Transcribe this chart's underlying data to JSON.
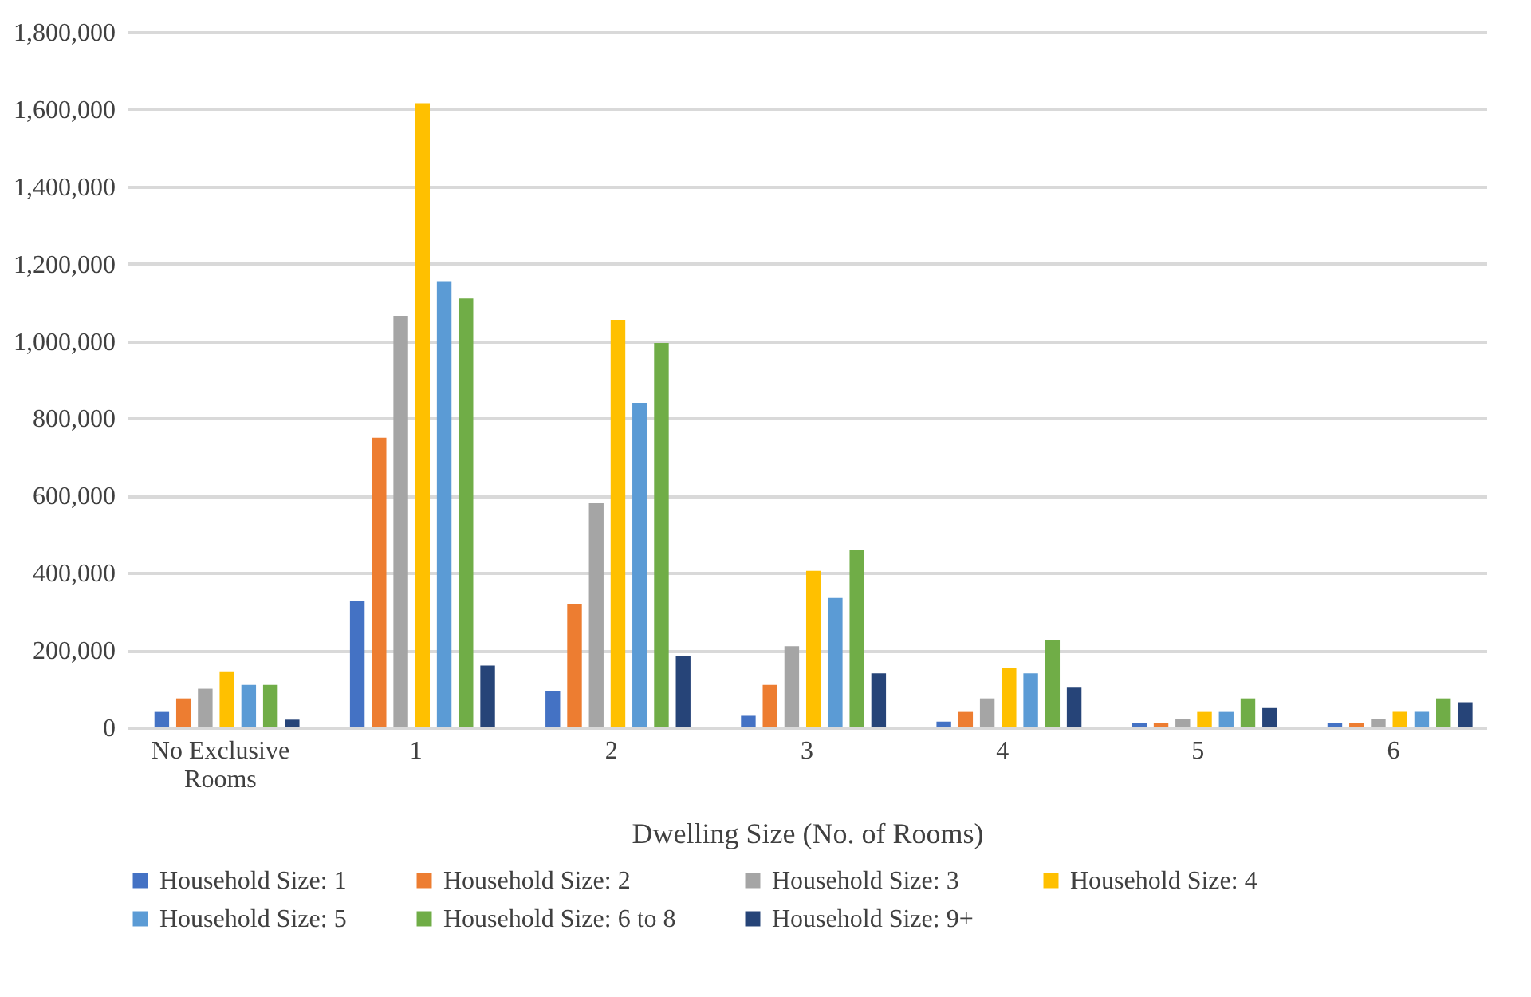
{
  "chart_data": {
    "type": "bar",
    "xlabel": "Dwelling Size (No. of Rooms)",
    "categories": [
      "No Exclusive Rooms",
      "1",
      "2",
      "3",
      "4",
      "5",
      "6"
    ],
    "series": [
      {
        "name": "Household Size: 1",
        "color": "#4472c4",
        "values": [
          40000,
          326000,
          95000,
          30000,
          15000,
          12000,
          12000
        ]
      },
      {
        "name": "Household Size: 2",
        "color": "#ed7d31",
        "values": [
          75000,
          750000,
          320000,
          110000,
          40000,
          12000,
          12000
        ]
      },
      {
        "name": "Household Size: 3",
        "color": "#a5a5a5",
        "values": [
          100000,
          1065000,
          580000,
          210000,
          75000,
          22000,
          22000
        ]
      },
      {
        "name": "Household Size: 4",
        "color": "#ffc000",
        "values": [
          145000,
          1615000,
          1055000,
          405000,
          155000,
          40000,
          40000
        ]
      },
      {
        "name": "Household Size: 5",
        "color": "#5b9bd5",
        "values": [
          110000,
          1155000,
          840000,
          335000,
          140000,
          40000,
          40000
        ]
      },
      {
        "name": "Household Size: 6 to 8",
        "color": "#70ad47",
        "values": [
          110000,
          1110000,
          995000,
          460000,
          225000,
          75000,
          75000
        ]
      },
      {
        "name": "Household Size: 9+",
        "color": "#264478",
        "values": [
          20000,
          160000,
          185000,
          140000,
          105000,
          50000,
          65000
        ]
      }
    ],
    "ylim": [
      0,
      1800000
    ],
    "yticks": [
      0,
      {
        "value": 200000,
        "label": "200,000"
      },
      {
        "value": 400000,
        "label": "400,000"
      },
      {
        "value": 600000,
        "label": "600,000"
      },
      {
        "value": 800000,
        "label": "800,000"
      },
      {
        "value": 1000000,
        "label": "1,000,000"
      },
      {
        "value": 1200000,
        "label": "1,200,000"
      },
      {
        "value": 1400000,
        "label": "1,400,000"
      },
      {
        "value": 1600000,
        "label": "1,600,000"
      },
      {
        "value": 1800000,
        "label": "1,800,000"
      }
    ],
    "grid": "y",
    "legend": "bottom"
  }
}
